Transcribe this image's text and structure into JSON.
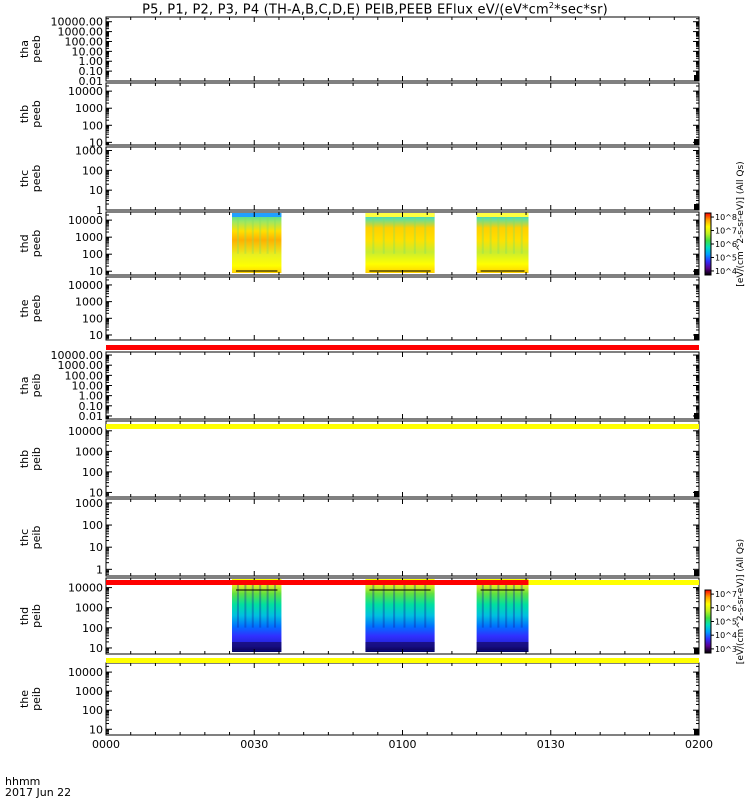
{
  "chart_data": {
    "type": "heatmap",
    "title": {
      "prefix": "P5, P1, P2, P3, P4 (TH-A,B,C,D,E) PEIB,PEEB EFlux eV/(eV*cm",
      "sup": "2",
      "suffix": "*sec*sr)"
    },
    "x_axis": {
      "ticks": [
        "0000",
        "0030",
        "0100",
        "0130",
        "0200"
      ],
      "tick_minutes": [
        0,
        30,
        60,
        90,
        120
      ],
      "range_minutes": [
        0,
        120
      ],
      "corner_label_1": "hhmm",
      "corner_label_2": "2017 Jun 22"
    },
    "panels": [
      {
        "probe": "tha",
        "instrument": "peeb",
        "scale": "log",
        "ticks": [
          "0.01",
          "0.10",
          "1.00",
          "10.00",
          "100.00",
          "1000.00",
          "10000.00"
        ],
        "tick_values": [
          0.01,
          0.1,
          1,
          10,
          100,
          1000,
          10000
        ],
        "ylim": [
          0.01,
          30000
        ]
      },
      {
        "probe": "thb",
        "instrument": "peeb",
        "scale": "log",
        "ticks": [
          "10",
          "100",
          "1000",
          "10000"
        ],
        "tick_values": [
          10,
          100,
          1000,
          10000
        ],
        "ylim": [
          7,
          30000
        ]
      },
      {
        "probe": "thc",
        "instrument": "peeb",
        "scale": "log",
        "ticks": [
          "1",
          "10",
          "100",
          "1000"
        ],
        "tick_values": [
          1,
          10,
          100,
          1000
        ],
        "ylim": [
          1,
          1500
        ]
      },
      {
        "probe": "thd",
        "instrument": "peeb",
        "scale": "log",
        "ticks": [
          "10",
          "100",
          "1000",
          "10000"
        ],
        "tick_values": [
          10,
          100,
          1000,
          10000
        ],
        "ylim": [
          6,
          30000
        ],
        "data_blocks_minutes": [
          [
            25.5,
            35.5
          ],
          [
            52.5,
            66.5
          ],
          [
            75,
            85.5
          ]
        ]
      },
      {
        "probe": "the",
        "instrument": "peeb",
        "scale": "log",
        "ticks": [
          "10",
          "100",
          "1000",
          "10000"
        ],
        "tick_values": [
          10,
          100,
          1000,
          10000
        ],
        "ylim": [
          5,
          30000
        ]
      },
      {
        "probe": "tha",
        "instrument": "peib",
        "scale": "log",
        "ticks": [
          "0.01",
          "0.10",
          "1.00",
          "10.00",
          "100.00",
          "1000.00",
          "10000.00"
        ],
        "tick_values": [
          0.01,
          0.1,
          1,
          10,
          100,
          1000,
          10000
        ],
        "ylim": [
          0.005,
          20000
        ]
      },
      {
        "probe": "thb",
        "instrument": "peib",
        "scale": "log",
        "ticks": [
          "10",
          "100",
          "1000",
          "10000"
        ],
        "tick_values": [
          10,
          100,
          1000,
          10000
        ],
        "ylim": [
          6,
          30000
        ]
      },
      {
        "probe": "thc",
        "instrument": "peib",
        "scale": "log",
        "ticks": [
          "1",
          "10",
          "100",
          "1000"
        ],
        "tick_values": [
          1,
          10,
          100,
          1000
        ],
        "ylim": [
          0.5,
          1500
        ]
      },
      {
        "probe": "thd",
        "instrument": "peib",
        "scale": "log",
        "ticks": [
          "10",
          "100",
          "1000",
          "10000"
        ],
        "tick_values": [
          10,
          100,
          1000,
          10000
        ],
        "ylim": [
          5,
          30000
        ],
        "data_blocks_minutes": [
          [
            25.5,
            35.5
          ],
          [
            52.5,
            66.5
          ],
          [
            75,
            85.5
          ]
        ]
      },
      {
        "probe": "the",
        "instrument": "peib",
        "scale": "log",
        "ticks": [
          "10",
          "100",
          "1000",
          "10000"
        ],
        "tick_values": [
          10,
          100,
          1000,
          10000
        ],
        "ylim": [
          5,
          30000
        ]
      }
    ],
    "status_bars": [
      {
        "after_panel": 4,
        "segments": [
          {
            "from_minutes": 0,
            "to_minutes": 120,
            "color": "#ff0000"
          }
        ]
      },
      {
        "after_panel": 5,
        "segments": [
          {
            "from_minutes": 0,
            "to_minutes": 120,
            "color": "#ffff00"
          }
        ]
      },
      {
        "after_panel": 7,
        "segments": [
          {
            "from_minutes": 0,
            "to_minutes": 85.5,
            "color": "#ff0000"
          },
          {
            "from_minutes": 85.5,
            "to_minutes": 120,
            "color": "#ffff00"
          }
        ]
      },
      {
        "after_panel": 8,
        "segments": [
          {
            "from_minutes": 0,
            "to_minutes": 120,
            "color": "#ffff00"
          }
        ]
      }
    ],
    "colorbars": [
      {
        "panel": 3,
        "label": "[eV/(cm^2-s-sr-eV)] (All Qs)",
        "ticks": [
          "10^4",
          "10^5",
          "10^6",
          "10^7",
          "10^8"
        ],
        "exponents": [
          4,
          5,
          6,
          7,
          8
        ]
      },
      {
        "panel": 8,
        "label": "[eV/(cm^2-s-sr-eV)] (All Qs)",
        "ticks": [
          "10^3",
          "10^4",
          "10^5",
          "10^6",
          "10^7"
        ],
        "exponents": [
          3,
          4,
          5,
          6,
          7
        ]
      }
    ],
    "colors": {
      "scale": [
        "#000000",
        "#5a0090",
        "#3030ff",
        "#00a0ff",
        "#00e0c0",
        "#40e040",
        "#c0f020",
        "#ffff00",
        "#ffa000",
        "#ff0000"
      ]
    }
  }
}
